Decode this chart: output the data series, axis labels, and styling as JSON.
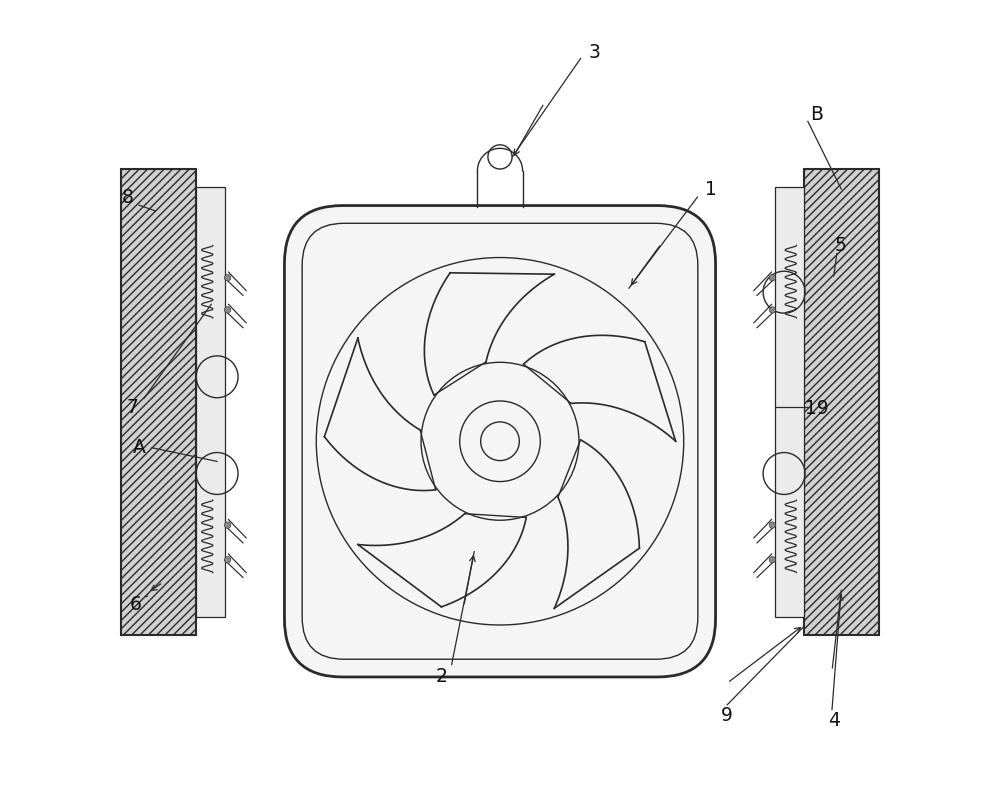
{
  "bg_color": "#ffffff",
  "line_color": "#2a2a2a",
  "label_color": "#111111",
  "fig_width": 10.0,
  "fig_height": 8.1
}
